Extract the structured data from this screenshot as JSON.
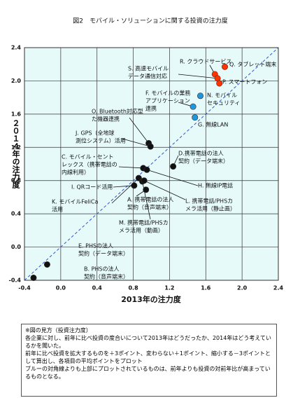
{
  "chart_data": {
    "type": "scatter",
    "title": "図2　モバイル・ソリューションに関する投資の注力度",
    "xlabel": "2013年の注力度",
    "ylabel": "２０１４年の注力度",
    "xlim": [
      -0.4,
      2.4
    ],
    "ylim": [
      -0.4,
      2.4
    ],
    "xticks": [
      -0.4,
      {
        "value": 0,
        "label": "0.0"
      },
      0.4,
      0.8,
      1.2,
      1.6,
      {
        "value": 2,
        "label": "2.0"
      },
      2.4
    ],
    "yticks": [
      -0.4,
      {
        "value": 0,
        "label": "0.0"
      },
      0.4,
      0.8,
      1.2,
      1.6,
      {
        "value": 2,
        "label": "2.0"
      },
      2.4
    ],
    "grid": true,
    "series": [
      {
        "color": "#ff3300",
        "x": [
          1.81,
          1.7,
          1.73,
          1.75
        ],
        "values": [
          2.17,
          2.08,
          2.03,
          1.97
        ],
        "labels": [
          [
            "Q. タブレット端末"
          ],
          [
            "R. クラウドサービス"
          ],
          [
            "S. 高速モバイル",
            "データ通信対応"
          ],
          [
            "P. スマートフォン"
          ]
        ]
      },
      {
        "color": "#1e96e0",
        "x": [
          1.54,
          1.46,
          1.48
        ],
        "values": [
          1.82,
          1.69,
          1.56
        ],
        "labels": [
          [
            "N. モバイル",
            "セキュリティ"
          ],
          [
            "F. モバイルの業務",
            "アプリケーション",
            "連携"
          ],
          [
            "G. 無線LAN"
          ]
        ]
      },
      {
        "color": "#111111",
        "x": [
          0.97,
          0.99,
          0.91,
          0.95,
          1.24,
          0.86,
          0.9,
          0.92,
          0.81,
          0.94,
          -0.15,
          -0.3
        ],
        "values": [
          1.25,
          1.21,
          0.95,
          0.93,
          0.97,
          0.83,
          0.79,
          0.8,
          0.74,
          0.69,
          -0.21,
          -0.37
        ],
        "labels": [
          [
            "O. Bluetooth対応型",
            "た機器連携"
          ],
          [
            "J. GPS（全地球",
            "測位システム）活用"
          ],
          [
            "C. モバイル・セント",
            "レックス（携帯電話の",
            "内線利用）"
          ],
          [
            "H. 無線IP電話"
          ],
          [
            "D.携帯電話の法人",
            "契約（データ端末）"
          ],
          [
            "K. モバイルFeliCa",
            "活用"
          ],
          [
            "M. 携帯電話/PHSカ",
            "メラ活用（動画）"
          ],
          [
            "L. 携帯電話/PHSカ",
            "メラ活用（静止画）"
          ],
          [
            "I. QRコード活用"
          ],
          [
            "A. 携帯電話の法人",
            "契約（音声端末）"
          ],
          [
            "E. PHSの法人",
            "契約（データ端末）"
          ],
          [
            "B. PHSの法人",
            "契約（音声端末）"
          ]
        ]
      }
    ],
    "notes": [
      "※図の見方（投資注力度）",
      "各企業に対し、前年に比べ投資の度合いについて2013年はどうだったか、2014年はどう考えているかを聞いた。",
      "前年に比べ投資を拡大するものを＋3ポイント、変わらない＋1ポイント、縮小する－3ポイントとして算出し、各項目の平均ポイントをプロット",
      "ブルーの対角線よりも上部にプロットされているものは、前年よりも投資の対前年比が高まっているものとなる。"
    ]
  }
}
